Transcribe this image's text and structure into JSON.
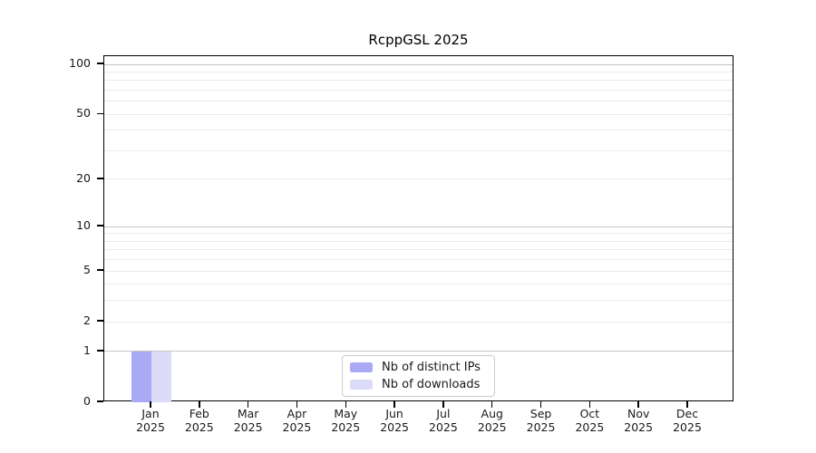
{
  "figure": {
    "background": "#ffffff"
  },
  "chart_data": {
    "type": "bar",
    "title": "RcppGSL 2025",
    "x_axis": {
      "months": [
        "Jan",
        "Feb",
        "Mar",
        "Apr",
        "May",
        "Jun",
        "Jul",
        "Aug",
        "Sep",
        "Oct",
        "Nov",
        "Dec"
      ],
      "year": "2025"
    },
    "y_axis": {
      "scale": "log1p",
      "labeled_ticks": [
        0,
        1,
        2,
        5,
        10,
        20,
        50,
        100
      ],
      "major_gridlines": [
        1,
        10,
        100
      ],
      "minor_gridlines": [
        2,
        3,
        4,
        5,
        6,
        7,
        8,
        9,
        20,
        30,
        40,
        50,
        60,
        70,
        80,
        90
      ],
      "ylim": [
        0,
        112
      ]
    },
    "series": [
      {
        "name": "Nb of distinct IPs",
        "color": "#a9a9f4",
        "values": [
          1,
          0,
          0,
          0,
          0,
          0,
          0,
          0,
          0,
          0,
          0,
          0
        ]
      },
      {
        "name": "Nb of downloads",
        "color": "#dcdcf9",
        "values": [
          1,
          0,
          0,
          0,
          0,
          0,
          0,
          0,
          0,
          0,
          0,
          0
        ]
      }
    ],
    "grid": {
      "major_color": "#c6c6c6",
      "minor_color": "#eaeaea"
    },
    "legend": {
      "position": "bottom-center",
      "background": "#ffffff",
      "border_color": "#cccccc"
    }
  }
}
